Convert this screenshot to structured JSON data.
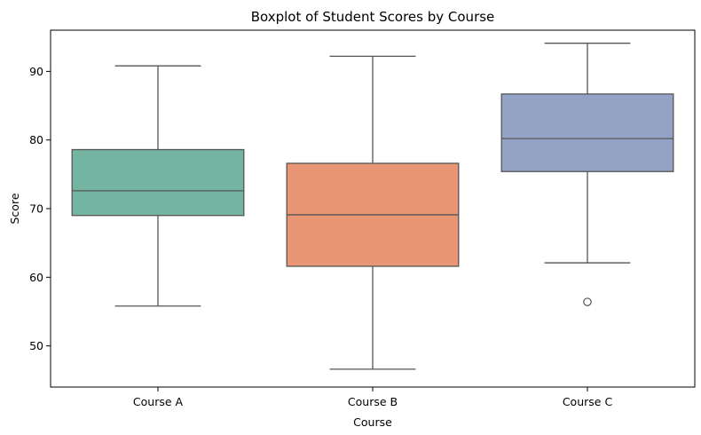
{
  "chart_data": {
    "type": "boxplot",
    "title": "Boxplot of Student Scores by Course",
    "xlabel": "Course",
    "ylabel": "Score",
    "ylim": [
      44,
      96
    ],
    "yticks": [
      50,
      60,
      70,
      80,
      90
    ],
    "grid": false,
    "legend": "none",
    "categories": [
      "Course A",
      "Course B",
      "Course C"
    ],
    "boxes": [
      {
        "category": "Course A",
        "whisker_low": 55.8,
        "q1": 69.0,
        "median": 72.6,
        "q3": 78.6,
        "whisker_high": 90.8,
        "outliers": [],
        "color": "#73b5a0"
      },
      {
        "category": "Course B",
        "whisker_low": 46.6,
        "q1": 61.6,
        "median": 69.1,
        "q3": 76.6,
        "whisker_high": 92.2,
        "outliers": [],
        "color": "#e99675"
      },
      {
        "category": "Course C",
        "whisker_low": 62.1,
        "q1": 75.4,
        "median": 80.2,
        "q3": 86.7,
        "whisker_high": 94.1,
        "outliers": [
          56.4
        ],
        "color": "#93a2c5"
      }
    ]
  }
}
